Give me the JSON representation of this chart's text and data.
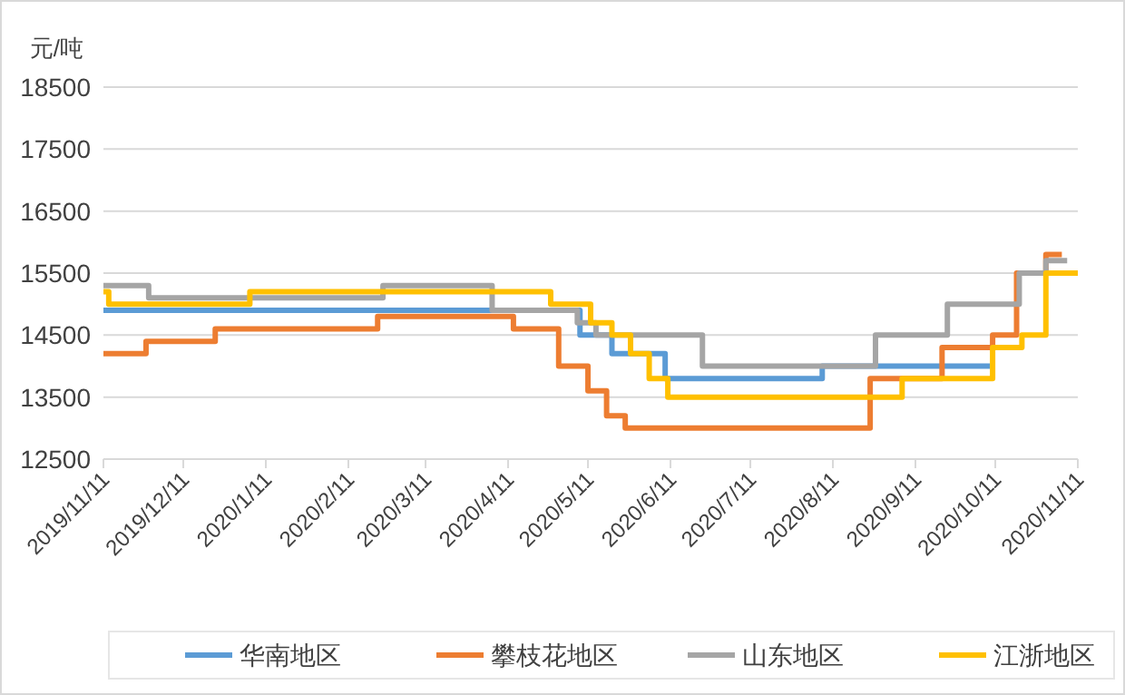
{
  "chart_data": {
    "type": "step",
    "ylabel": "元/吨",
    "xlim": [
      "2019-11-11",
      "2020-11-11"
    ],
    "xticks": [
      {
        "value": "2019-11-11",
        "label": "2019/11/11"
      },
      {
        "value": "2019-12-11",
        "label": "2019/12/11"
      },
      {
        "value": "2020-01-11",
        "label": "2020/1/11"
      },
      {
        "value": "2020-02-11",
        "label": "2020/2/11"
      },
      {
        "value": "2020-03-11",
        "label": "2020/3/11"
      },
      {
        "value": "2020-04-11",
        "label": "2020/4/11"
      },
      {
        "value": "2020-05-11",
        "label": "2020/5/11"
      },
      {
        "value": "2020-06-11",
        "label": "2020/6/11"
      },
      {
        "value": "2020-07-11",
        "label": "2020/7/11"
      },
      {
        "value": "2020-08-11",
        "label": "2020/8/11"
      },
      {
        "value": "2020-09-11",
        "label": "2020/9/11"
      },
      {
        "value": "2020-10-11",
        "label": "2020/10/11"
      },
      {
        "value": "2020-11-11",
        "label": "2020/11/11"
      }
    ],
    "ylim": [
      12500,
      18500
    ],
    "yticks": [
      12500,
      13500,
      14500,
      15500,
      16500,
      17500,
      18500
    ],
    "grid": "y",
    "legend": "bottom",
    "series": [
      {
        "name": "华南地区",
        "color": "#5b9bd5",
        "x": [
          "2019-11-11",
          "2020-05-08",
          "2020-05-20",
          "2020-06-09",
          "2020-08-07",
          "2020-10-09"
        ],
        "values": [
          14900,
          14500,
          14200,
          13800,
          14000,
          14000
        ]
      },
      {
        "name": "攀枝花地区",
        "color": "#ed7d31",
        "x": [
          "2019-11-11",
          "2019-11-27",
          "2019-12-23",
          "2020-02-22",
          "2020-04-13",
          "2020-04-30",
          "2020-05-11",
          "2020-05-18",
          "2020-05-25",
          "2020-08-25",
          "2020-09-21",
          "2020-10-10",
          "2020-10-19",
          "2020-10-30",
          "2020-11-05"
        ],
        "values": [
          14200,
          14400,
          14600,
          14800,
          14600,
          14000,
          13600,
          13200,
          13000,
          13800,
          14300,
          14500,
          15500,
          15800,
          15800
        ]
      },
      {
        "name": "山东地区",
        "color": "#a5a5a5",
        "x": [
          "2019-11-11",
          "2019-11-28",
          "2020-02-24",
          "2020-04-05",
          "2020-05-07",
          "2020-05-14",
          "2020-06-23",
          "2020-08-27",
          "2020-09-23",
          "2020-10-20",
          "2020-10-30",
          "2020-11-07"
        ],
        "values": [
          15300,
          15100,
          15300,
          14900,
          14700,
          14500,
          14000,
          14500,
          15000,
          15500,
          15700,
          15700
        ]
      },
      {
        "name": "江浙地区",
        "color": "#ffc000",
        "x": [
          "2019-11-11",
          "2019-11-13",
          "2020-01-05",
          "2020-04-27",
          "2020-05-12",
          "2020-05-20",
          "2020-05-27",
          "2020-06-03",
          "2020-06-10",
          "2020-09-06",
          "2020-10-10",
          "2020-10-21",
          "2020-10-30",
          "2020-11-11"
        ],
        "values": [
          15200,
          15000,
          15200,
          15000,
          14700,
          14500,
          14200,
          13800,
          13500,
          13800,
          14300,
          14500,
          15500,
          15500
        ]
      }
    ]
  }
}
